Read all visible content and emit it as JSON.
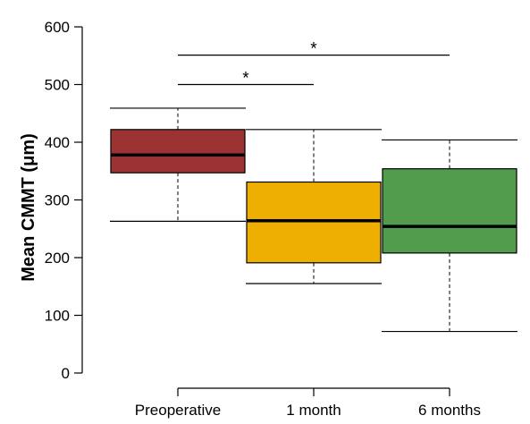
{
  "chart_data": {
    "type": "box",
    "title": "",
    "xlabel": "",
    "ylabel": "Mean CMMT (μm)",
    "ylim": [
      0,
      600
    ],
    "yticks": [
      0,
      100,
      200,
      300,
      400,
      500,
      600
    ],
    "grid": false,
    "categories": [
      "Preoperative",
      "1 month",
      "6 months"
    ],
    "boxes": [
      {
        "min": 263,
        "q1": 347,
        "median": 378,
        "q3": 422,
        "max": 459,
        "color": "#9b3333"
      },
      {
        "min": 155,
        "q1": 191,
        "median": 264,
        "q3": 331,
        "max": 422,
        "color": "#efaf00"
      },
      {
        "min": 72,
        "q1": 208,
        "median": 254,
        "q3": 354,
        "max": 404,
        "color": "#529c4e"
      }
    ],
    "significance": [
      {
        "from": 0,
        "to": 1,
        "y": 500,
        "label": "*"
      },
      {
        "from": 0,
        "to": 2,
        "y": 551,
        "label": "*"
      }
    ]
  }
}
